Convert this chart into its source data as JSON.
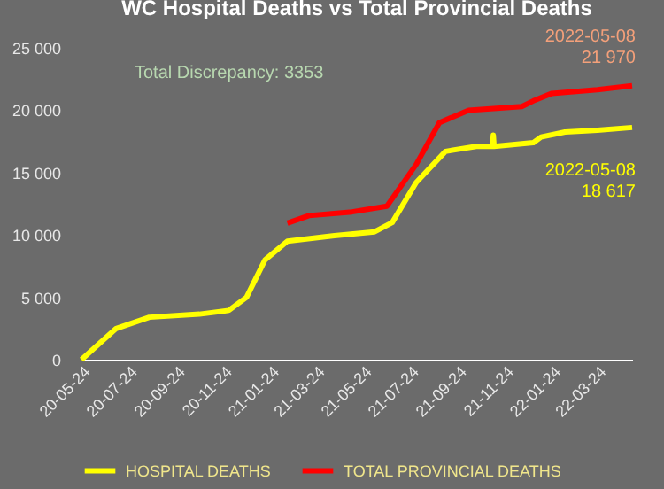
{
  "chart_data": {
    "type": "line",
    "title": "WC Hospital Deaths vs Total Provincial Deaths",
    "xlim": [
      "2020-05-24",
      "2022-05-08"
    ],
    "xticks": [
      {
        "value": "2020-05-24",
        "label": "20-05-24"
      },
      {
        "value": "2020-07-24",
        "label": "20-07-24"
      },
      {
        "value": "2020-09-24",
        "label": "20-09-24"
      },
      {
        "value": "2020-11-24",
        "label": "20-11-24"
      },
      {
        "value": "2021-01-24",
        "label": "21-01-24"
      },
      {
        "value": "2021-03-24",
        "label": "21-03-24"
      },
      {
        "value": "2021-05-24",
        "label": "21-05-24"
      },
      {
        "value": "2021-07-24",
        "label": "21-07-24"
      },
      {
        "value": "2021-09-24",
        "label": "21-09-24"
      },
      {
        "value": "2021-11-24",
        "label": "21-11-24"
      },
      {
        "value": "2022-01-24",
        "label": "22-01-24"
      },
      {
        "value": "2022-03-24",
        "label": "22-03-24"
      }
    ],
    "ylim": [
      0,
      25000
    ],
    "yticks": [
      0,
      {
        "value": 5000,
        "label": "5 000"
      },
      {
        "value": 10000,
        "label": "10 000"
      },
      {
        "value": 15000,
        "label": "15 000"
      },
      {
        "value": 20000,
        "label": "20 000"
      },
      {
        "value": 25000,
        "label": "25 000"
      }
    ],
    "grid": false,
    "legend": "bottom",
    "marker": "none",
    "line_style": "solid",
    "series": [
      {
        "name": "HOSPITAL DEATHS",
        "color": "#ffff00",
        "x": [
          "2020-05-24",
          "2020-07-08",
          "2020-08-20",
          "2020-10-24",
          "2020-12-01",
          "2020-12-24",
          "2021-01-17",
          "2021-02-15",
          "2021-04-17",
          "2021-06-08",
          "2021-07-01",
          "2021-08-01",
          "2021-09-08",
          "2021-10-18",
          "2021-11-08",
          "2021-11-09",
          "2021-11-10",
          "2021-12-31",
          "2022-01-10",
          "2022-02-10",
          "2022-03-24",
          "2022-05-08"
        ],
        "values": [
          0,
          2500,
          3400,
          3650,
          3950,
          5000,
          8000,
          9500,
          9950,
          10250,
          11000,
          14200,
          16700,
          17100,
          17100,
          18000,
          17100,
          17400,
          17850,
          18250,
          18400,
          18617
        ]
      },
      {
        "name": "TOTAL PROVINCIAL DEATHS",
        "color": "#ff0000",
        "x": [
          "2021-02-15",
          "2021-03-15",
          "2021-05-10",
          "2021-06-24",
          "2021-08-01",
          "2021-08-31",
          "2021-10-08",
          "2021-12-16",
          "2021-12-31",
          "2022-01-24",
          "2022-03-24",
          "2022-05-08"
        ],
        "values": [
          10950,
          11550,
          11850,
          12300,
          15650,
          19000,
          20000,
          20300,
          20750,
          21350,
          21650,
          21970
        ]
      }
    ],
    "annotations": [
      "Total Discrepancy:  3353",
      {
        "text": "2022-05-08\n21 970",
        "x": "2022-05-08",
        "y": 21970
      },
      {
        "text": "2022-05-08\n18 617",
        "x": "2022-05-08",
        "y": 18617
      }
    ]
  }
}
